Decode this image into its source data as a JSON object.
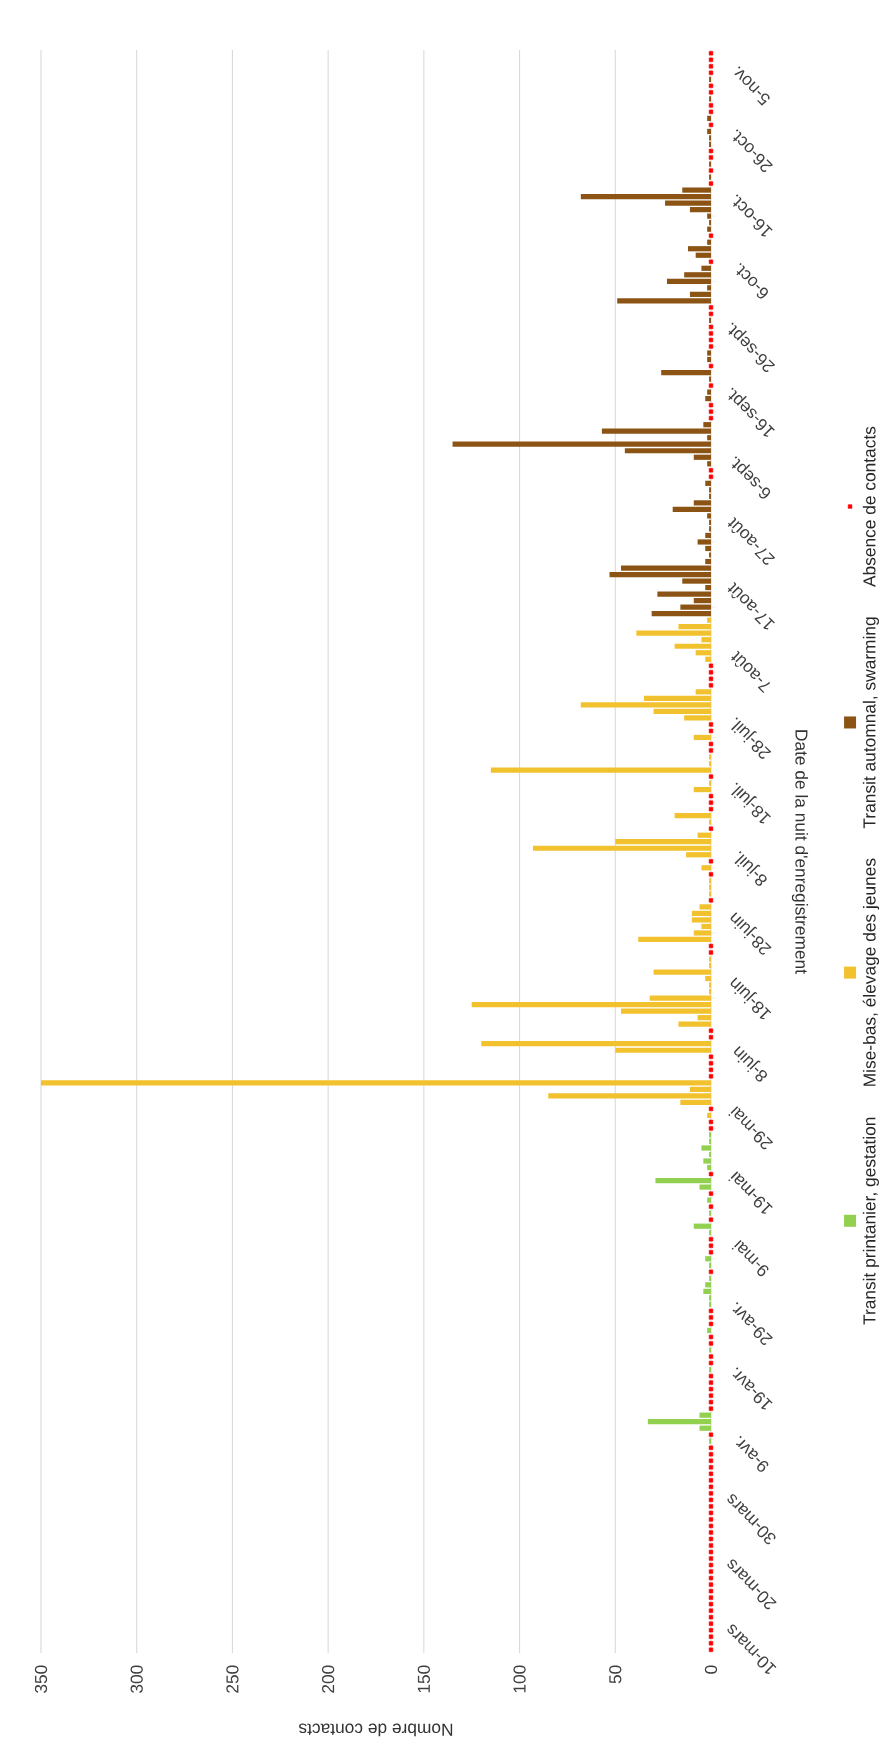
{
  "chart_data": {
    "type": "bar",
    "orientation": "horizontal",
    "xlabel": "Nombre de contacts",
    "ylabel": "Date de la nuit d'enregistrement",
    "xlim": [
      350,
      0
    ],
    "xticks": [
      0,
      50,
      100,
      150,
      200,
      250,
      300,
      350
    ],
    "grid": "x",
    "legend": "right",
    "categories": [
      null,
      null,
      null,
      null,
      null,
      "5-nov.",
      null,
      null,
      null,
      null,
      null,
      null,
      null,
      null,
      null,
      "26-oct.",
      null,
      null,
      null,
      null,
      null,
      null,
      null,
      null,
      null,
      "16-oct.",
      null,
      null,
      null,
      null,
      null,
      null,
      null,
      null,
      null,
      "6-oct.",
      null,
      null,
      null,
      null,
      null,
      null,
      null,
      null,
      null,
      "26-sept.",
      null,
      null,
      null,
      null,
      null,
      null,
      null,
      null,
      null,
      "16-sept.",
      null,
      null,
      null,
      null,
      null,
      null,
      null,
      null,
      null,
      "6-sept.",
      null,
      null,
      null,
      null,
      null,
      null,
      null,
      null,
      null,
      "27-août",
      null,
      null,
      null,
      null,
      null,
      null,
      null,
      null,
      null,
      "17-août",
      null,
      null,
      null,
      null,
      null,
      null,
      null,
      null,
      null,
      "7-août",
      null,
      null,
      null,
      null,
      null,
      null,
      null,
      null,
      null,
      "28-juil.",
      null,
      null,
      null,
      null,
      null,
      null,
      null,
      null,
      null,
      "18-juil.",
      null,
      null,
      null,
      null,
      null,
      null,
      null,
      null,
      null,
      "8-juil.",
      null,
      null,
      null,
      null,
      null,
      null,
      null,
      null,
      null,
      "28-juin",
      null,
      null,
      null,
      null,
      null,
      null,
      null,
      null,
      null,
      "18-juin",
      null,
      null,
      null,
      null,
      null,
      null,
      null,
      null,
      null,
      "8-juin",
      null,
      null,
      null,
      null,
      null,
      null,
      null,
      null,
      null,
      "29-mai",
      null,
      null,
      null,
      null,
      null,
      null,
      null,
      null,
      null,
      "19-mai",
      null,
      null,
      null,
      null,
      null,
      null,
      null,
      null,
      null,
      "9-mai",
      null,
      null,
      null,
      null,
      null,
      null,
      null,
      null,
      null,
      "29-avr.",
      null,
      null,
      null,
      null,
      null,
      null,
      null,
      null,
      null,
      "19-avr.",
      null,
      null,
      null,
      null,
      null,
      null,
      null,
      null,
      null,
      "9-avr.",
      null,
      null,
      null,
      null,
      null,
      null,
      null,
      null,
      null,
      "30-mars",
      null,
      null,
      null,
      null,
      null,
      null,
      null,
      null,
      null,
      "20-mars",
      null,
      null,
      null,
      null,
      null,
      null,
      null,
      null,
      null,
      "10-mars"
    ],
    "series": [
      {
        "name": "Transit printanier, gestation",
        "color": "#92d050",
        "values": [
          null,
          null,
          null,
          null,
          null,
          null,
          null,
          null,
          null,
          null,
          null,
          null,
          null,
          null,
          null,
          null,
          null,
          null,
          null,
          null,
          null,
          null,
          null,
          null,
          null,
          null,
          null,
          null,
          null,
          null,
          null,
          null,
          null,
          null,
          null,
          null,
          null,
          null,
          null,
          null,
          null,
          null,
          null,
          null,
          null,
          null,
          null,
          null,
          null,
          null,
          null,
          null,
          null,
          null,
          null,
          null,
          null,
          null,
          null,
          null,
          null,
          null,
          null,
          null,
          null,
          null,
          null,
          null,
          null,
          null,
          null,
          null,
          null,
          null,
          null,
          null,
          null,
          null,
          null,
          null,
          null,
          null,
          null,
          null,
          null,
          null,
          null,
          null,
          null,
          null,
          null,
          null,
          null,
          null,
          null,
          null,
          null,
          null,
          null,
          null,
          null,
          null,
          null,
          null,
          null,
          null,
          null,
          null,
          null,
          null,
          null,
          null,
          null,
          null,
          null,
          null,
          null,
          null,
          null,
          null,
          null,
          null,
          null,
          null,
          null,
          null,
          null,
          null,
          null,
          null,
          null,
          null,
          null,
          null,
          null,
          null,
          null,
          null,
          null,
          null,
          null,
          null,
          null,
          null,
          null,
          null,
          null,
          null,
          null,
          null,
          null,
          null,
          null,
          null,
          null,
          null,
          null,
          null,
          null,
          null,
          null,
          null,
          null,
          null,
          null,
          null,
          1,
          1,
          5,
          1,
          4,
          2,
          null,
          29,
          6,
          null,
          2,
          null,
          1,
          null,
          9,
          1,
          null,
          null,
          null,
          3,
          1,
          null,
          1,
          3,
          4,
          1,
          1,
          null,
          null,
          null,
          2,
          null,
          null,
          1,
          null,
          null,
          1,
          null,
          null,
          null,
          null,
          null,
          null,
          6,
          33,
          6,
          null,
          1,
          null,
          null,
          null,
          null,
          null,
          null,
          null,
          null,
          null,
          null,
          null,
          null,
          null,
          null,
          null,
          null,
          null,
          null,
          null,
          null,
          null,
          null,
          null,
          null,
          null,
          null,
          null,
          null,
          null,
          null,
          null,
          null
        ]
      },
      {
        "name": "Mise-bas, élevage des jeunes",
        "color": "#f2c12e",
        "values": [
          null,
          null,
          null,
          null,
          null,
          null,
          null,
          null,
          null,
          null,
          null,
          null,
          null,
          null,
          null,
          null,
          null,
          null,
          null,
          null,
          null,
          null,
          null,
          null,
          null,
          null,
          null,
          null,
          null,
          null,
          null,
          null,
          null,
          null,
          null,
          null,
          null,
          null,
          null,
          null,
          null,
          null,
          null,
          null,
          null,
          null,
          null,
          null,
          null,
          null,
          null,
          null,
          null,
          null,
          null,
          null,
          null,
          null,
          null,
          null,
          null,
          null,
          null,
          null,
          null,
          null,
          null,
          null,
          null,
          null,
          null,
          null,
          null,
          null,
          null,
          null,
          null,
          null,
          null,
          null,
          null,
          null,
          null,
          null,
          null,
          null,
          null,
          2,
          17,
          39,
          5,
          19,
          8,
          3,
          null,
          null,
          null,
          null,
          8,
          35,
          68,
          30,
          14,
          null,
          null,
          9,
          null,
          null,
          1,
          1,
          115,
          null,
          1,
          9,
          null,
          null,
          null,
          19,
          1,
          null,
          7,
          50,
          93,
          13,
          null,
          5,
          null,
          1,
          1,
          1,
          null,
          6,
          10,
          10,
          5,
          9,
          38,
          null,
          null,
          1,
          1,
          30,
          3,
          1,
          1,
          32,
          125,
          47,
          7,
          17,
          null,
          null,
          120,
          50,
          null,
          null,
          null,
          null,
          350,
          11,
          85,
          16,
          null,
          2,
          null,
          null,
          null,
          null,
          null,
          null,
          null,
          null,
          null,
          null,
          null,
          null,
          null,
          null,
          null,
          null,
          null,
          null,
          null,
          null,
          null,
          null,
          null,
          null,
          null,
          null,
          null,
          null,
          null,
          null,
          null,
          null,
          null,
          null,
          null,
          null,
          null,
          null,
          null,
          null,
          null,
          null,
          null,
          null,
          null,
          null,
          null,
          null,
          null,
          null,
          null,
          null,
          null,
          null,
          null,
          null,
          null,
          null,
          null,
          null,
          null,
          null,
          null,
          null,
          null,
          null,
          null,
          null,
          null,
          null,
          null,
          null,
          null,
          null,
          null,
          null,
          null,
          null,
          null,
          null,
          null,
          null
        ]
      },
      {
        "name": "Transit automnal, swarming",
        "color": "#8c5414",
        "values": [
          null,
          null,
          null,
          null,
          1,
          null,
          null,
          1,
          null,
          null,
          2,
          null,
          2,
          1,
          1,
          null,
          null,
          1,
          null,
          1,
          null,
          15,
          68,
          24,
          11,
          2,
          1,
          2,
          null,
          2,
          12,
          8,
          null,
          5,
          14,
          23,
          2,
          11,
          49,
          null,
          null,
          1,
          null,
          null,
          null,
          null,
          2,
          2,
          null,
          26,
          1,
          null,
          2,
          3,
          null,
          null,
          null,
          4,
          57,
          2,
          135,
          45,
          9,
          2,
          null,
          null,
          3,
          1,
          1,
          9,
          20,
          2,
          1,
          1,
          3,
          7,
          3,
          1,
          3,
          47,
          53,
          15,
          3,
          28,
          9,
          16,
          31,
          null,
          null,
          null,
          null,
          null,
          null,
          null,
          null,
          null,
          null,
          null,
          null,
          null,
          null,
          null,
          null,
          null,
          null,
          null,
          null,
          null,
          null,
          null,
          null,
          null,
          null,
          null,
          null,
          null,
          null,
          null,
          null,
          null,
          null,
          null,
          null,
          null,
          null,
          null,
          null,
          null,
          null,
          null,
          null,
          null,
          null,
          null,
          null,
          null,
          null,
          null,
          null,
          null,
          null,
          null,
          null,
          null,
          null,
          null,
          null,
          null,
          null,
          null,
          null,
          null,
          null,
          null,
          null,
          null,
          null,
          null,
          null,
          null,
          null,
          null,
          null,
          null,
          null,
          null,
          null,
          null,
          null,
          null,
          null,
          null,
          null,
          null,
          null,
          null,
          null,
          null,
          null,
          null,
          null,
          null,
          null,
          null,
          null,
          null,
          null,
          null,
          null,
          null,
          null,
          null,
          null,
          null,
          null,
          null,
          null,
          null,
          null,
          null,
          null,
          null,
          null,
          null,
          null,
          null,
          null,
          null,
          null,
          null,
          null,
          null,
          null,
          null,
          null,
          null,
          null,
          null,
          null,
          null,
          null,
          null,
          null,
          null,
          null,
          null,
          null,
          null,
          null,
          null,
          null,
          null,
          null,
          null,
          null,
          null,
          null,
          null,
          null,
          null,
          null,
          null,
          null,
          null,
          null,
          null
        ]
      },
      {
        "name": "Absence de contacts",
        "color": "#ff0000",
        "type": "scatter",
        "marker": "square",
        "values": [
          0,
          0,
          0,
          0,
          null,
          0,
          0,
          null,
          0,
          0,
          null,
          0,
          null,
          null,
          null,
          0,
          0,
          null,
          0,
          null,
          0,
          null,
          null,
          null,
          null,
          null,
          null,
          null,
          0,
          null,
          null,
          null,
          0,
          null,
          null,
          null,
          null,
          null,
          null,
          0,
          0,
          null,
          0,
          0,
          0,
          0,
          null,
          null,
          0,
          null,
          null,
          0,
          null,
          null,
          0,
          0,
          0,
          null,
          null,
          null,
          null,
          null,
          null,
          null,
          0,
          0,
          null,
          null,
          null,
          null,
          null,
          null,
          null,
          null,
          null,
          null,
          null,
          null,
          null,
          null,
          null,
          null,
          null,
          null,
          null,
          null,
          null,
          null,
          null,
          null,
          null,
          null,
          null,
          null,
          0,
          0,
          0,
          0,
          null,
          null,
          null,
          null,
          null,
          0,
          0,
          null,
          0,
          0,
          null,
          null,
          null,
          0,
          null,
          null,
          0,
          0,
          0,
          null,
          null,
          0,
          null,
          null,
          null,
          null,
          0,
          null,
          0,
          null,
          null,
          null,
          0,
          null,
          null,
          null,
          null,
          null,
          null,
          0,
          0,
          null,
          null,
          null,
          null,
          null,
          null,
          null,
          null,
          null,
          null,
          null,
          0,
          0,
          null,
          null,
          0,
          0,
          0,
          0,
          null,
          null,
          null,
          null,
          0,
          null,
          0,
          0,
          null,
          null,
          null,
          null,
          null,
          null,
          0,
          null,
          null,
          0,
          null,
          0,
          null,
          0,
          null,
          null,
          0,
          0,
          0,
          null,
          null,
          0,
          null,
          null,
          null,
          null,
          null,
          0,
          0,
          0,
          null,
          0,
          0,
          null,
          0,
          0,
          null,
          0,
          0,
          0,
          0,
          0,
          0,
          null,
          null,
          null,
          0,
          null,
          0,
          0,
          0,
          0,
          0,
          0,
          0,
          0,
          0,
          0,
          0,
          0,
          0,
          0,
          0,
          0,
          0,
          0,
          0,
          0,
          0,
          0,
          0,
          0,
          0,
          0,
          0,
          0,
          0,
          0,
          0,
          0
        ]
      }
    ]
  }
}
